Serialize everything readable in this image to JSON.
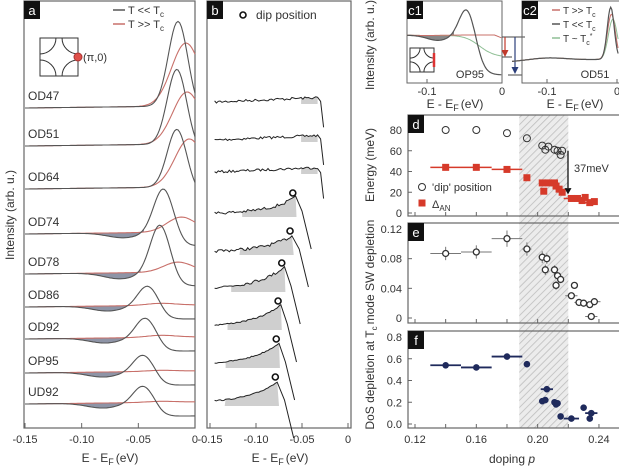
{
  "chart_data": [
    {
      "panel": "a",
      "type": "line",
      "xlabel": {
        "main": "E - E",
        "sub": "F",
        "unit": "(eV)"
      },
      "ylabel": "Intensity (arb. u.)",
      "xlim": [
        -0.15,
        0
      ],
      "xticks": [
        "-0.15",
        "-0.10",
        "-0.05",
        "0"
      ],
      "legend": [
        {
          "label": "T << T",
          "sub": "c",
          "color": "#555555"
        },
        {
          "label": "T >> T",
          "sub": "c",
          "color": "#c8706a"
        }
      ],
      "inset_label": "(π,0)",
      "series_colors": {
        "low_T": "#555555",
        "high_T": "#c8706a",
        "dip_fill": "#7a8196"
      },
      "samples": [
        {
          "name": "OD47",
          "peak_low_T": -0.015,
          "peak_height_low_T": 85,
          "peak_high_T": -0.008,
          "peak_height_high_T": 63,
          "dip": 0
        },
        {
          "name": "OD51",
          "peak_low_T": -0.016,
          "peak_height_low_T": 75,
          "peak_high_T": -0.007,
          "peak_height_high_T": 52,
          "dip": 0
        },
        {
          "name": "OD64",
          "peak_low_T": -0.016,
          "peak_height_low_T": 58,
          "peak_high_T": -0.005,
          "peak_height_high_T": 48,
          "dip": 0
        },
        {
          "name": "OD74",
          "peak_low_T": -0.028,
          "peak_height_low_T": 44,
          "peak_high_T": -0.012,
          "peak_height_high_T": 15,
          "dip": 5
        },
        {
          "name": "OD78",
          "peak_low_T": -0.031,
          "peak_height_low_T": 48,
          "peak_high_T": -0.015,
          "peak_height_high_T": 10,
          "dip": 6
        },
        {
          "name": "OD86",
          "peak_low_T": -0.042,
          "peak_height_low_T": 20,
          "peak_high_T": -0.03,
          "peak_height_high_T": 2,
          "dip": 5
        },
        {
          "name": "OD92",
          "peak_low_T": -0.044,
          "peak_height_low_T": 20,
          "peak_high_T": -0.03,
          "peak_height_high_T": 2,
          "dip": 5
        },
        {
          "name": "OP95",
          "peak_low_T": -0.046,
          "peak_height_low_T": 17,
          "peak_high_T": -0.03,
          "peak_height_high_T": 1,
          "dip": 5
        },
        {
          "name": "UD92",
          "peak_low_T": -0.046,
          "peak_height_low_T": 17,
          "peak_high_T": -0.03,
          "peak_height_high_T": 1,
          "dip": 5
        }
      ]
    },
    {
      "panel": "b",
      "type": "line",
      "xlabel": {
        "main": "E - E",
        "sub": "F",
        "unit": "(eV)"
      },
      "xlim": [
        -0.15,
        0
      ],
      "xticks": [
        "-0.15",
        "-0.10",
        "-0.05",
        "0"
      ],
      "legend": [
        {
          "label": "dip position",
          "marker": "open-circle"
        }
      ],
      "samples": [
        {
          "name": "OD47",
          "dip_position": null
        },
        {
          "name": "OD51",
          "dip_position": null
        },
        {
          "name": "OD64",
          "dip_position": null
        },
        {
          "name": "OD74",
          "dip_position": -0.06
        },
        {
          "name": "OD78",
          "dip_position": -0.063
        },
        {
          "name": "OD86",
          "dip_position": -0.072
        },
        {
          "name": "OD92",
          "dip_position": -0.076
        },
        {
          "name": "OP95",
          "dip_position": -0.078
        },
        {
          "name": "UD92",
          "dip_position": -0.079
        }
      ]
    },
    {
      "panel": "c1",
      "type": "line",
      "sample": "OP95",
      "ylabel": "Intensity (arb. u.)",
      "xlabel": {
        "main": "E - E",
        "sub": "F",
        "unit": "(eV)"
      },
      "xticks": [
        "-0.1",
        "0"
      ],
      "colors": {
        "low_T": "#555555",
        "high_T": "#c8706a",
        "near_T": "#8fbf95",
        "arrow_red": "#c0392b",
        "arrow_blue": "#2c3e7a"
      }
    },
    {
      "panel": "c2",
      "type": "line",
      "sample": "OD51",
      "xlabel": {
        "main": "E - E",
        "sub": "F",
        "unit": "(eV)"
      },
      "xticks": [
        "-0.1",
        "0"
      ],
      "legend": [
        {
          "label": "T >> T",
          "sub": "c",
          "sup": "",
          "color": "#c8706a"
        },
        {
          "label": "T << T",
          "sub": "c",
          "sup": "",
          "color": "#555555"
        },
        {
          "label": "T ~ T",
          "sub": "c",
          "sup": "*",
          "color": "#8fbf95"
        }
      ]
    },
    {
      "panel": "d",
      "type": "scatter",
      "ylabel": "Energy (meV)",
      "ylim": [
        0,
        94
      ],
      "yticks": [
        "0",
        "20",
        "40",
        "60",
        "80"
      ],
      "annotation": "37meV",
      "shaded_range_p": [
        0.188,
        0.22
      ],
      "legend": [
        {
          "label": "'dip' position",
          "marker": "open-circle"
        },
        {
          "label": "Δ",
          "sub": "AN",
          "marker": "red-square",
          "color": "#d63a2a"
        }
      ],
      "series": [
        {
          "name": "'dip' position",
          "p": [
            0.14,
            0.16,
            0.18,
            0.193,
            0.203,
            0.205,
            0.207,
            0.211,
            0.213,
            0.215,
            0.216
          ],
          "values": [
            80,
            80,
            77,
            72,
            65,
            61,
            64,
            61,
            60,
            56,
            60
          ]
        },
        {
          "name": "ΔAN",
          "p": [
            0.14,
            0.16,
            0.18,
            0.193,
            0.203,
            0.204,
            0.207,
            0.211,
            0.212,
            0.214,
            0.216,
            0.222,
            0.226,
            0.229,
            0.231,
            0.234,
            0.237
          ],
          "values": [
            44,
            44,
            42,
            34,
            29,
            21,
            29,
            29,
            26,
            23,
            20,
            14,
            14,
            12,
            15,
            10,
            11
          ],
          "p_err": [
            0.01,
            0.01,
            0.01,
            0,
            0,
            0,
            0,
            0,
            0,
            0,
            0,
            0.005,
            0.004,
            0,
            0,
            0.004,
            0
          ]
        }
      ]
    },
    {
      "panel": "e",
      "type": "scatter",
      "ylabel": "mode SW depletion",
      "ylim": [
        -0.003,
        0.125
      ],
      "yticks": [
        "0",
        "0.04",
        "0.08",
        "0.12"
      ],
      "p": [
        0.14,
        0.16,
        0.18,
        0.193,
        0.203,
        0.205,
        0.206,
        0.211,
        0.212,
        0.213,
        0.215,
        0.222,
        0.224,
        0.227,
        0.23,
        0.234,
        0.237,
        0.235
      ],
      "values": [
        0.087,
        0.089,
        0.107,
        0.093,
        0.082,
        0.065,
        0.08,
        0.065,
        0.044,
        0.057,
        0.052,
        0.03,
        0.044,
        0.021,
        0.02,
        0.018,
        0.022,
        0.002
      ],
      "p_err": [
        0.01,
        0.01,
        0.01,
        0.003,
        0,
        0,
        0,
        0,
        0,
        0,
        0,
        0.004,
        0,
        0.003,
        0,
        0,
        0.004,
        0.004
      ],
      "value_err": [
        0.009,
        0.009,
        0.011,
        0.009,
        0.008,
        0.007,
        0.007,
        0.006,
        0.006,
        0.005,
        0.005,
        0.004,
        0.004,
        0.003,
        0.003,
        0.003,
        0.003,
        0.002
      ]
    },
    {
      "panel": "f",
      "type": "scatter",
      "ylabel": {
        "main": "DoS depletion at T",
        "sub": "c"
      },
      "xlabel": {
        "main": "doping ",
        "italic": "p"
      },
      "ylim": [
        -0.03,
        0.86
      ],
      "yticks": [
        "0.0",
        "0.2",
        "0.4",
        "0.6",
        "0.8"
      ],
      "xticks": [
        "0.12",
        "0.16",
        "0.20",
        "0.24"
      ],
      "xlim": [
        0.12,
        0.246
      ],
      "color": "#1f2a5c",
      "p": [
        0.14,
        0.16,
        0.18,
        0.193,
        0.203,
        0.205,
        0.206,
        0.211,
        0.212,
        0.213,
        0.215,
        0.222,
        0.23,
        0.234,
        0.235
      ],
      "values": [
        0.54,
        0.52,
        0.62,
        0.55,
        0.21,
        0.22,
        0.32,
        0.2,
        0.18,
        0.19,
        0.07,
        0.05,
        0.15,
        0.05,
        0.1
      ],
      "p_err": [
        0.01,
        0.01,
        0.01,
        0,
        0,
        0,
        0.004,
        0,
        0,
        0,
        0,
        0.005,
        0,
        0,
        0.004
      ]
    }
  ]
}
